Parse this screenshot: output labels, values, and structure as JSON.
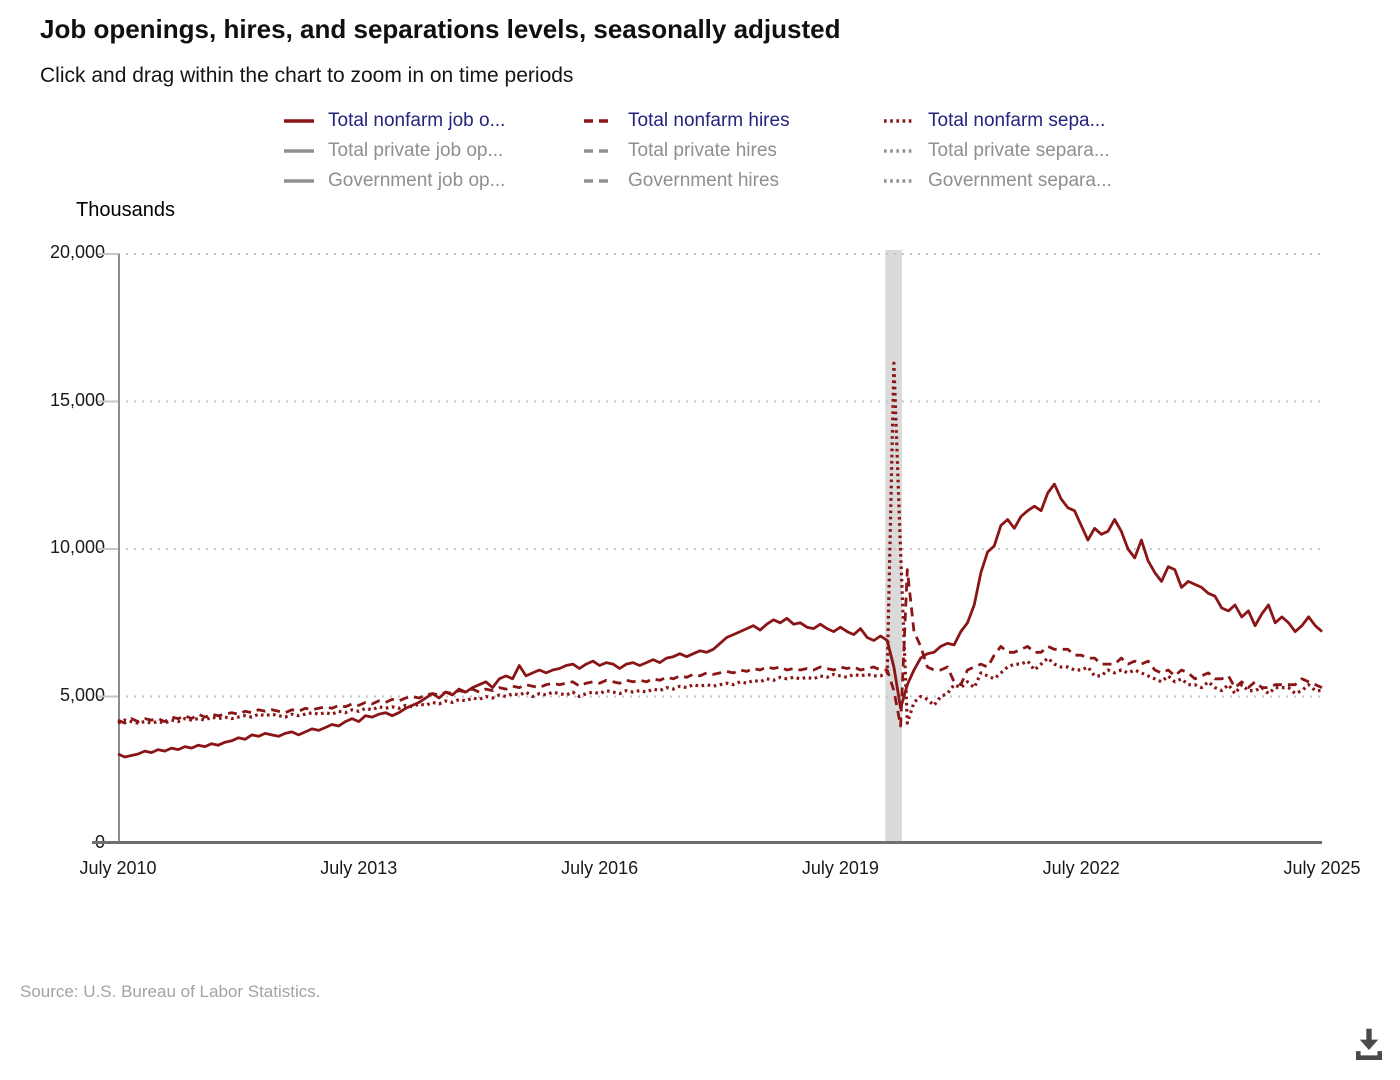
{
  "page": {
    "title": "Job openings, hires, and separations levels, seasonally adjusted",
    "subtitle": "Click and drag within the chart to zoom in on time periods",
    "source": "Source: U.S. Bureau of Labor Statistics."
  },
  "colors": {
    "series_red": "#8a1517",
    "legend_active_text": "#24247f",
    "legend_inactive": "#8f8f8f",
    "grid": "#c6c6c6",
    "y_axis_line": "#8c8c8c",
    "x_axis_line": "#6f6f6f",
    "tick": "#c4c4cc",
    "recession_band": "#dadada",
    "download_icon": "#4a4a4a"
  },
  "legend": {
    "columns": [
      [
        {
          "label": "Total nonfarm job o...",
          "dash": "solid",
          "active": true
        },
        {
          "label": "Total private job op...",
          "dash": "solid",
          "active": false
        },
        {
          "label": "Government job op...",
          "dash": "solid",
          "active": false
        }
      ],
      [
        {
          "label": "Total nonfarm hires",
          "dash": "dashed",
          "active": true
        },
        {
          "label": "Total private hires",
          "dash": "dashed",
          "active": false
        },
        {
          "label": "Government hires",
          "dash": "dashed",
          "active": false
        }
      ],
      [
        {
          "label": "Total nonfarm sepa...",
          "dash": "dotted",
          "active": true
        },
        {
          "label": "Total private separa...",
          "dash": "dotted",
          "active": false
        },
        {
          "label": "Government separa...",
          "dash": "dotted",
          "active": false
        }
      ]
    ]
  },
  "chart_data": {
    "type": "line",
    "units": "Thousands",
    "ylabel": "Thousands",
    "ylim": [
      0,
      20000
    ],
    "yticks": [
      0,
      5000,
      10000,
      15000,
      20000
    ],
    "ytick_labels": [
      "0",
      "5,000",
      "10,000",
      "15,000",
      "20,000"
    ],
    "xtick_labels": [
      "July 2010",
      "July 2013",
      "July 2016",
      "July 2019",
      "July 2022",
      "July 2025"
    ],
    "x_start": "July 2010",
    "x_end": "July 2025",
    "x_frequency": "monthly",
    "n_points": 181,
    "grid": "dotted horizontal",
    "legend_position": "top",
    "recession_band_months": {
      "start": 114.7,
      "end": 117.2,
      "note_visible_as": "gray vertical band early 2020"
    },
    "series": [
      {
        "name": "Total nonfarm job o...",
        "dash": "solid",
        "values": [
          3050,
          2950,
          3000,
          3050,
          3150,
          3100,
          3200,
          3150,
          3250,
          3200,
          3300,
          3250,
          3350,
          3300,
          3400,
          3350,
          3450,
          3500,
          3600,
          3550,
          3700,
          3650,
          3750,
          3700,
          3650,
          3750,
          3800,
          3700,
          3800,
          3900,
          3850,
          3950,
          4050,
          4000,
          4150,
          4250,
          4150,
          4350,
          4300,
          4400,
          4450,
          4350,
          4450,
          4600,
          4700,
          4800,
          4950,
          5100,
          4950,
          5150,
          5050,
          5250,
          5150,
          5300,
          5400,
          5500,
          5300,
          5600,
          5700,
          5600,
          6050,
          5700,
          5800,
          5900,
          5800,
          5900,
          5950,
          6050,
          6100,
          5950,
          6100,
          6200,
          6050,
          6150,
          6100,
          5950,
          6100,
          6150,
          6050,
          6150,
          6250,
          6150,
          6300,
          6350,
          6450,
          6350,
          6450,
          6550,
          6500,
          6600,
          6800,
          7000,
          7100,
          7200,
          7300,
          7400,
          7250,
          7450,
          7600,
          7500,
          7650,
          7450,
          7500,
          7350,
          7300,
          7450,
          7300,
          7200,
          7350,
          7200,
          7100,
          7300,
          7000,
          6900,
          7050,
          6900,
          6000,
          4600,
          5400,
          5900,
          6300,
          6450,
          6500,
          6700,
          6800,
          6750,
          7200,
          7500,
          8100,
          9200,
          9900,
          10100,
          10800,
          11000,
          10700,
          11100,
          11300,
          11450,
          11300,
          11900,
          12200,
          11700,
          11400,
          11300,
          10800,
          10300,
          10700,
          10500,
          10600,
          11000,
          10600,
          10000,
          9700,
          10300,
          9600,
          9200,
          8900,
          9400,
          9300,
          8700,
          8900,
          8800,
          8700,
          8500,
          8400,
          8000,
          7900,
          8100,
          7700,
          7900,
          7400,
          7800,
          8100,
          7500,
          7700,
          7500,
          7200,
          7400,
          7700,
          7400,
          7200
        ]
      },
      {
        "name": "Total nonfarm hires",
        "dash": "dashed",
        "values": [
          4200,
          4100,
          4250,
          4150,
          4250,
          4200,
          4250,
          4150,
          4300,
          4250,
          4350,
          4250,
          4400,
          4300,
          4400,
          4350,
          4400,
          4450,
          4400,
          4500,
          4450,
          4550,
          4500,
          4550,
          4500,
          4450,
          4550,
          4500,
          4600,
          4550,
          4600,
          4650,
          4600,
          4700,
          4650,
          4750,
          4700,
          4800,
          4750,
          4850,
          4800,
          4900,
          4850,
          4950,
          5000,
          4950,
          5050,
          5100,
          5050,
          5150,
          5100,
          5200,
          5150,
          5250,
          5150,
          5250,
          5200,
          5300,
          5250,
          5350,
          5300,
          5400,
          5350,
          5300,
          5400,
          5450,
          5400,
          5450,
          5500,
          5350,
          5450,
          5500,
          5450,
          5550,
          5500,
          5450,
          5550,
          5500,
          5550,
          5500,
          5600,
          5550,
          5650,
          5600,
          5700,
          5650,
          5750,
          5700,
          5800,
          5750,
          5800,
          5850,
          5800,
          5900,
          5850,
          5950,
          5900,
          6000,
          5950,
          6000,
          5900,
          5950,
          5900,
          5950,
          5900,
          6000,
          5950,
          5900,
          6000,
          5950,
          6000,
          5900,
          5950,
          6000,
          5900,
          5900,
          5200,
          4000,
          9300,
          7200,
          6700,
          6000,
          5900,
          5900,
          6000,
          5500,
          5400,
          5900,
          6000,
          6100,
          6000,
          6400,
          6700,
          6500,
          6500,
          6600,
          6700,
          6500,
          6500,
          6700,
          6600,
          6600,
          6600,
          6400,
          6400,
          6300,
          6300,
          6100,
          6100,
          6100,
          6300,
          6100,
          6200,
          6100,
          6200,
          5900,
          5800,
          5900,
          5700,
          5900,
          5800,
          5600,
          5700,
          5800,
          5600,
          5600,
          5700,
          5300,
          5500,
          5300,
          5500,
          5300,
          5300,
          5400,
          5400,
          5400,
          5400,
          5600,
          5500,
          5400,
          5300
        ]
      },
      {
        "name": "Total nonfarm sepa...",
        "dash": "dotted",
        "values": [
          4100,
          4200,
          4150,
          4100,
          4150,
          4100,
          4150,
          4100,
          4200,
          4150,
          4250,
          4200,
          4250,
          4200,
          4300,
          4250,
          4300,
          4250,
          4300,
          4350,
          4300,
          4400,
          4350,
          4400,
          4350,
          4300,
          4400,
          4350,
          4400,
          4450,
          4400,
          4450,
          4400,
          4500,
          4450,
          4550,
          4500,
          4600,
          4550,
          4650,
          4600,
          4650,
          4600,
          4700,
          4650,
          4750,
          4700,
          4800,
          4750,
          4850,
          4800,
          4900,
          4850,
          4950,
          4900,
          5000,
          4950,
          5050,
          5000,
          5100,
          5050,
          5150,
          5000,
          5100,
          5050,
          5150,
          5100,
          5050,
          5150,
          5000,
          5100,
          5150,
          5100,
          5200,
          5150,
          5100,
          5200,
          5150,
          5200,
          5150,
          5250,
          5200,
          5300,
          5250,
          5350,
          5300,
          5400,
          5350,
          5400,
          5350,
          5400,
          5450,
          5400,
          5500,
          5450,
          5550,
          5500,
          5600,
          5550,
          5650,
          5600,
          5650,
          5600,
          5650,
          5600,
          5700,
          5650,
          5750,
          5700,
          5650,
          5750,
          5700,
          5750,
          5700,
          5700,
          5800,
          16300,
          9900,
          4100,
          4800,
          5000,
          4900,
          4700,
          5000,
          5100,
          5400,
          5300,
          5500,
          5300,
          5800,
          5700,
          5600,
          5800,
          6000,
          6100,
          6100,
          6200,
          5900,
          6100,
          6300,
          6100,
          6000,
          6000,
          5900,
          5900,
          6000,
          5700,
          5700,
          5900,
          5800,
          5900,
          5800,
          5900,
          5800,
          5700,
          5600,
          5500,
          5700,
          5500,
          5600,
          5400,
          5400,
          5300,
          5500,
          5300,
          5200,
          5400,
          5100,
          5400,
          5200,
          5200,
          5300,
          5100,
          5300,
          5300,
          5300,
          5100,
          5200,
          5400,
          5200,
          5200
        ]
      }
    ]
  }
}
